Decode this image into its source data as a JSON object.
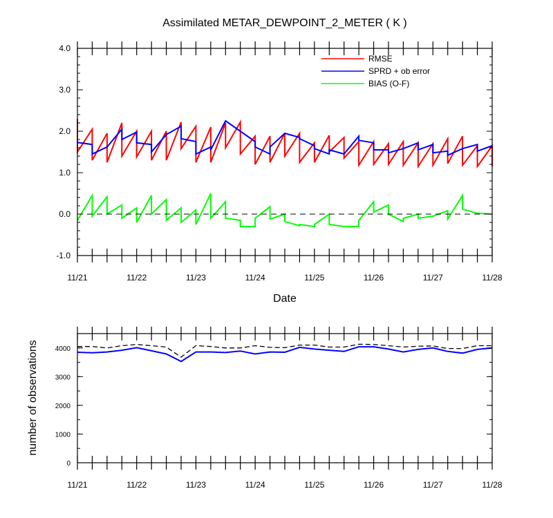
{
  "chart_data": [
    {
      "type": "line",
      "title": "Assimilated METAR_DEWPOINT_2_METER ( K )",
      "xlabel": "Date",
      "ylabel": "",
      "ylim": [
        -1.0,
        4.0
      ],
      "yticks": [
        "-1.0",
        "0.0",
        "1.0",
        "2.0",
        "3.0",
        "4.0"
      ],
      "xticks": [
        "11/21",
        "11/22",
        "11/23",
        "11/24",
        "11/25",
        "11/26",
        "11/27",
        "11/28"
      ],
      "legend_position": "top-right",
      "grid": false,
      "colors": {
        "RMSE": "#ff0000",
        "SPRD + ob error": "#0000ff",
        "BIAS (O-F)": "#00ff00",
        "zero_line": "#000000"
      },
      "series": [
        {
          "name": "RMSE",
          "x": [
            0,
            0,
            0.25,
            0.25,
            0.5,
            0.5,
            0.75,
            0.75,
            1,
            1,
            1.25,
            1.25,
            1.5,
            1.5,
            1.75,
            1.75,
            2,
            2,
            2.25,
            2.25,
            2.5,
            2.5,
            2.75,
            2.75,
            3,
            3,
            3.25,
            3.25,
            3.5,
            3.5,
            3.75,
            3.75,
            4,
            4,
            4.25,
            4.25,
            4.5,
            4.5,
            4.75,
            4.75,
            5,
            5,
            5.25,
            5.25,
            5.5,
            5.5,
            5.75,
            5.75,
            6,
            6,
            6.25,
            6.25,
            6.5,
            6.5,
            6.75,
            6.75,
            7,
            7
          ],
          "y": [
            2.3,
            1.5,
            2.05,
            1.3,
            1.95,
            1.25,
            2.2,
            1.4,
            2.0,
            1.38,
            2.0,
            1.3,
            2.0,
            1.3,
            2.22,
            1.58,
            2.12,
            1.25,
            2.1,
            1.25,
            2.2,
            1.6,
            2.22,
            1.45,
            1.88,
            1.2,
            1.88,
            1.25,
            1.95,
            1.4,
            1.95,
            1.25,
            1.72,
            1.25,
            1.9,
            1.5,
            1.85,
            1.35,
            1.75,
            1.18,
            1.75,
            1.2,
            1.7,
            1.2,
            1.75,
            1.18,
            1.72,
            1.15,
            1.7,
            1.18,
            1.82,
            1.22,
            1.88,
            1.18,
            1.65,
            1.15,
            1.65,
            1.15
          ]
        },
        {
          "name": "SPRD + ob error",
          "x": [
            0,
            0.25,
            0.25,
            0.5,
            0.75,
            0.75,
            1,
            1,
            1.25,
            1.25,
            1.5,
            1.75,
            1.75,
            2,
            2,
            2.25,
            2.25,
            2.5,
            2.75,
            2.75,
            3,
            3,
            3.25,
            3.25,
            3.5,
            3.75,
            3.75,
            4,
            4,
            4.25,
            4.25,
            4.5,
            4.75,
            4.75,
            5,
            5,
            5.25,
            5.25,
            5.5,
            5.75,
            5.75,
            6,
            6,
            6.25,
            6.25,
            6.5,
            6.75,
            6.75,
            7
          ],
          "y": [
            1.73,
            1.68,
            1.45,
            1.62,
            2.05,
            1.8,
            1.98,
            1.72,
            1.68,
            1.5,
            1.92,
            2.12,
            1.82,
            1.75,
            1.45,
            1.62,
            1.55,
            2.25,
            2.0,
            2.0,
            1.75,
            1.62,
            1.45,
            1.62,
            1.95,
            1.85,
            1.82,
            1.65,
            1.58,
            1.45,
            1.55,
            1.45,
            1.88,
            1.78,
            1.72,
            1.55,
            1.55,
            1.48,
            1.58,
            1.72,
            1.55,
            1.68,
            1.48,
            1.52,
            1.42,
            1.58,
            1.68,
            1.52,
            1.65
          ]
        },
        {
          "name": "BIAS (O-F)",
          "x": [
            0,
            0.25,
            0.25,
            0.5,
            0.5,
            0.75,
            0.75,
            1,
            1,
            1.25,
            1.25,
            1.5,
            1.5,
            1.75,
            1.75,
            2,
            2,
            2.25,
            2.25,
            2.5,
            2.5,
            2.75,
            2.75,
            3,
            3,
            3.25,
            3.25,
            3.5,
            3.5,
            3.75,
            3.75,
            4,
            4,
            4.25,
            4.25,
            4.5,
            4.5,
            4.75,
            4.75,
            5,
            5,
            5.25,
            5.25,
            5.5,
            5.5,
            5.75,
            5.75,
            6,
            6,
            6.25,
            6.25,
            6.5,
            6.5,
            6.75,
            6.75,
            7
          ],
          "y": [
            -0.15,
            0.45,
            -0.05,
            0.42,
            0.0,
            0.22,
            -0.1,
            0.15,
            -0.2,
            0.45,
            0.0,
            0.35,
            -0.15,
            0.15,
            -0.2,
            0.1,
            -0.25,
            0.5,
            -0.1,
            0.3,
            -0.1,
            -0.15,
            -0.3,
            -0.3,
            -0.1,
            0.18,
            -0.12,
            0.0,
            -0.18,
            -0.28,
            -0.25,
            -0.3,
            -0.25,
            0.0,
            -0.25,
            -0.3,
            -0.3,
            -0.3,
            -0.15,
            0.3,
            0.05,
            0.22,
            0.0,
            -0.18,
            -0.1,
            0.0,
            -0.1,
            -0.05,
            -0.05,
            0.08,
            -0.12,
            0.45,
            0.12,
            0.02,
            0.02,
            0.0
          ]
        }
      ]
    },
    {
      "type": "line",
      "title": "",
      "xlabel": "",
      "ylabel": "number of observations",
      "ylim": [
        0,
        4500
      ],
      "yticks": [
        "0",
        "1000",
        "2000",
        "3000",
        "4000"
      ],
      "xticks": [
        "11/21",
        "11/22",
        "11/23",
        "11/24",
        "11/25",
        "11/26",
        "11/27",
        "11/28"
      ],
      "grid": false,
      "colors": {
        "possible": "#000000",
        "assimilated": "#0000ff"
      },
      "series": [
        {
          "x": [
            0,
            0.25,
            0.5,
            0.75,
            1,
            1.25,
            1.5,
            1.75,
            2,
            2.25,
            2.5,
            2.75,
            3,
            3.25,
            3.5,
            3.75,
            4,
            4.25,
            4.5,
            4.75,
            5,
            5.25,
            5.5,
            5.75,
            6,
            6.25,
            6.5,
            6.75,
            7
          ],
          "y": [
            4050,
            4050,
            4000,
            4080,
            4120,
            4080,
            4030,
            3680,
            4080,
            4050,
            4000,
            4000,
            4080,
            4020,
            4010,
            4100,
            4100,
            4030,
            4030,
            4130,
            4120,
            4080,
            4030,
            4060,
            4070,
            3980,
            3980,
            4080,
            4080
          ],
          "dashed": true
        },
        {
          "x": [
            0,
            0.25,
            0.5,
            0.75,
            1,
            1.25,
            1.5,
            1.75,
            2,
            2.25,
            2.5,
            2.75,
            3,
            3.25,
            3.5,
            3.75,
            4,
            4.25,
            4.5,
            4.75,
            5,
            5.25,
            5.5,
            5.75,
            6,
            6.25,
            6.5,
            6.75,
            7
          ],
          "y": [
            3850,
            3830,
            3860,
            3920,
            4010,
            3900,
            3790,
            3530,
            3860,
            3860,
            3840,
            3890,
            3790,
            3860,
            3850,
            4020,
            3960,
            3920,
            3880,
            4040,
            4040,
            3960,
            3860,
            3950,
            4000,
            3880,
            3820,
            3950,
            4000
          ],
          "dashed": false
        }
      ]
    }
  ]
}
